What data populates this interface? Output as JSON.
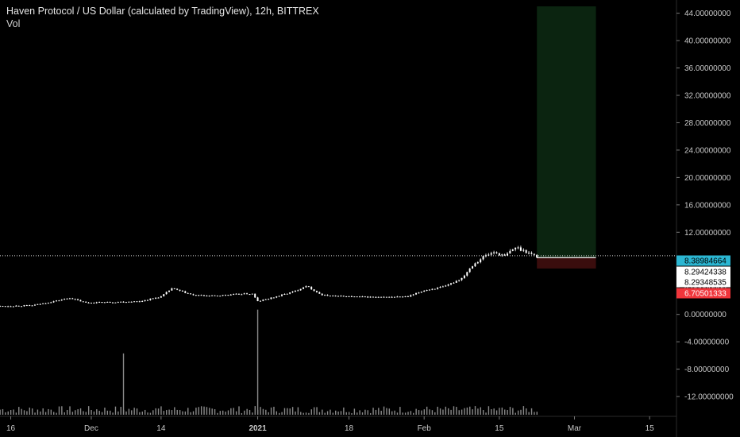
{
  "legend": {
    "title": "Haven Protocol / US Dollar (calculated by TradingView), 12h, BITTREX",
    "volume_label": "Vol"
  },
  "colors": {
    "background": "#000000",
    "candle": "#ffffff",
    "volume": "#8a8a8a",
    "profit_zone": "#0b2410",
    "loss_zone": "#3a0d0d",
    "price_tag_current": "#2bb6d2",
    "price_tag_stop": "#f0353b",
    "price_tag_neutral": "#ffffff"
  },
  "chart_data": {
    "type": "candlestick",
    "title": "Haven Protocol / US Dollar (calculated by TradingView), 12h, BITTREX",
    "ylim": [
      -13.5,
      45
    ],
    "y_ticks": [
      44,
      40,
      36,
      32,
      28,
      24,
      20,
      16,
      12,
      8,
      4,
      0,
      -4,
      -8,
      -12
    ],
    "y_tick_labels": [
      "44.00000000",
      "40.00000000",
      "36.00000000",
      "32.00000000",
      "28.00000000",
      "24.00000000",
      "20.00000000",
      "16.00000000",
      "12.00000000",
      "8.00000000",
      "4.00000000",
      "0.00000000",
      "-4.00000000",
      "-8.00000000",
      "-12.00000000"
    ],
    "x_range": [
      "2020-11-14",
      "2021-03-20"
    ],
    "x_ticks": [
      {
        "date": "2020-11-16",
        "label": "16"
      },
      {
        "date": "2020-12-01",
        "label": "Dec"
      },
      {
        "date": "2020-12-14",
        "label": "14"
      },
      {
        "date": "2021-01-01",
        "label": "2021"
      },
      {
        "date": "2021-01-18",
        "label": "18"
      },
      {
        "date": "2021-02-01",
        "label": "Feb"
      },
      {
        "date": "2021-02-15",
        "label": "15"
      },
      {
        "date": "2021-03-01",
        "label": "Mar"
      },
      {
        "date": "2021-03-15",
        "label": "15"
      }
    ],
    "price_series": [
      {
        "date": "2020-11-14",
        "close": 1.2
      },
      {
        "date": "2020-11-20",
        "close": 1.3
      },
      {
        "date": "2020-11-24",
        "close": 1.9
      },
      {
        "date": "2020-11-27",
        "close": 2.4
      },
      {
        "date": "2020-11-30",
        "close": 1.7
      },
      {
        "date": "2020-12-05",
        "close": 1.8
      },
      {
        "date": "2020-12-10",
        "close": 1.9
      },
      {
        "date": "2020-12-14",
        "close": 2.6
      },
      {
        "date": "2020-12-16",
        "close": 3.8
      },
      {
        "date": "2020-12-20",
        "close": 2.8
      },
      {
        "date": "2020-12-24",
        "close": 2.7
      },
      {
        "date": "2020-12-29",
        "close": 3.0
      },
      {
        "date": "2020-12-31",
        "close": 3.0
      },
      {
        "date": "2021-01-01",
        "close": 1.9
      },
      {
        "date": "2021-01-04",
        "close": 2.5
      },
      {
        "date": "2021-01-08",
        "close": 3.4
      },
      {
        "date": "2021-01-10",
        "close": 4.2
      },
      {
        "date": "2021-01-13",
        "close": 2.8
      },
      {
        "date": "2021-01-18",
        "close": 2.6
      },
      {
        "date": "2021-01-24",
        "close": 2.5
      },
      {
        "date": "2021-01-29",
        "close": 2.6
      },
      {
        "date": "2021-02-01",
        "close": 3.5
      },
      {
        "date": "2021-02-05",
        "close": 4.1
      },
      {
        "date": "2021-02-08",
        "close": 5.3
      },
      {
        "date": "2021-02-10",
        "close": 7.2
      },
      {
        "date": "2021-02-12",
        "close": 8.4
      },
      {
        "date": "2021-02-14",
        "close": 9.1
      },
      {
        "date": "2021-02-16",
        "close": 8.5
      },
      {
        "date": "2021-02-18",
        "close": 9.8
      },
      {
        "date": "2021-02-20",
        "close": 9.2
      },
      {
        "date": "2021-02-22",
        "close": 8.4
      }
    ],
    "volume_series": [
      {
        "date": "2020-12-07",
        "value": -5.7,
        "note": "spike"
      },
      {
        "date": "2021-01-01",
        "value": 0.7,
        "note": "spike"
      }
    ],
    "position": {
      "start_date": "2021-02-22",
      "end_date": "2021-03-05",
      "entry": 8.29424338,
      "target": 45,
      "stop": 6.70501333
    },
    "current_price": 8.38984664,
    "price_tags": [
      {
        "label": "8.38984664",
        "style": "current"
      },
      {
        "label": "8.29424338",
        "style": "neutral"
      },
      {
        "label": "8.29348535",
        "style": "neutral"
      },
      {
        "label": "6.70501333",
        "style": "stop"
      }
    ]
  }
}
